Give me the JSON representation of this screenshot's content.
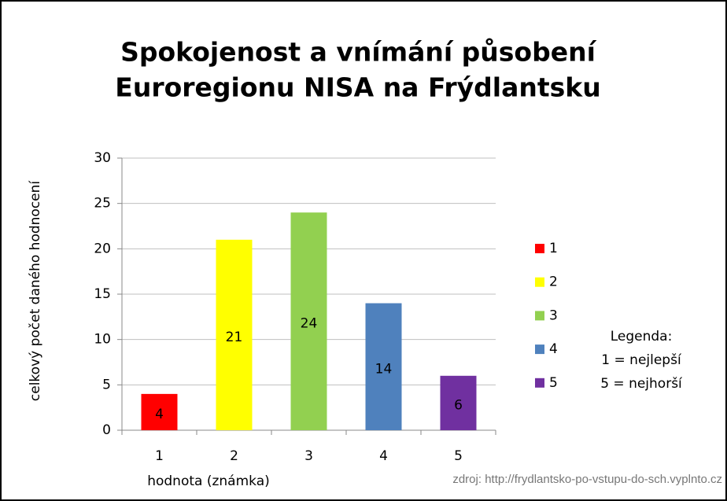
{
  "chart_data": {
    "type": "bar",
    "title": [
      "Spokojenost a vnímání působení",
      "Euroregionu NISA na Frýdlantsku"
    ],
    "y_label": "celkový počet daného hodnocení",
    "x_label": "hodnota (známka)",
    "categories": [
      "1",
      "2",
      "3",
      "4",
      "5"
    ],
    "values": [
      4,
      21,
      24,
      14,
      6
    ],
    "colors": [
      "#ff0000",
      "#ffff00",
      "#92d050",
      "#4f81bd",
      "#7030a0"
    ],
    "ylim": [
      0,
      30
    ],
    "yticks": [
      0,
      5,
      10,
      15,
      20,
      25,
      30
    ],
    "grid": true,
    "legend": "right",
    "legend_note": [
      "Legenda:",
      "1 = nejlepší",
      "5 = nejhorší"
    ],
    "source": "zdroj: http://frydlantsko-po-vstupu-do-sch.vyplnto.cz"
  }
}
